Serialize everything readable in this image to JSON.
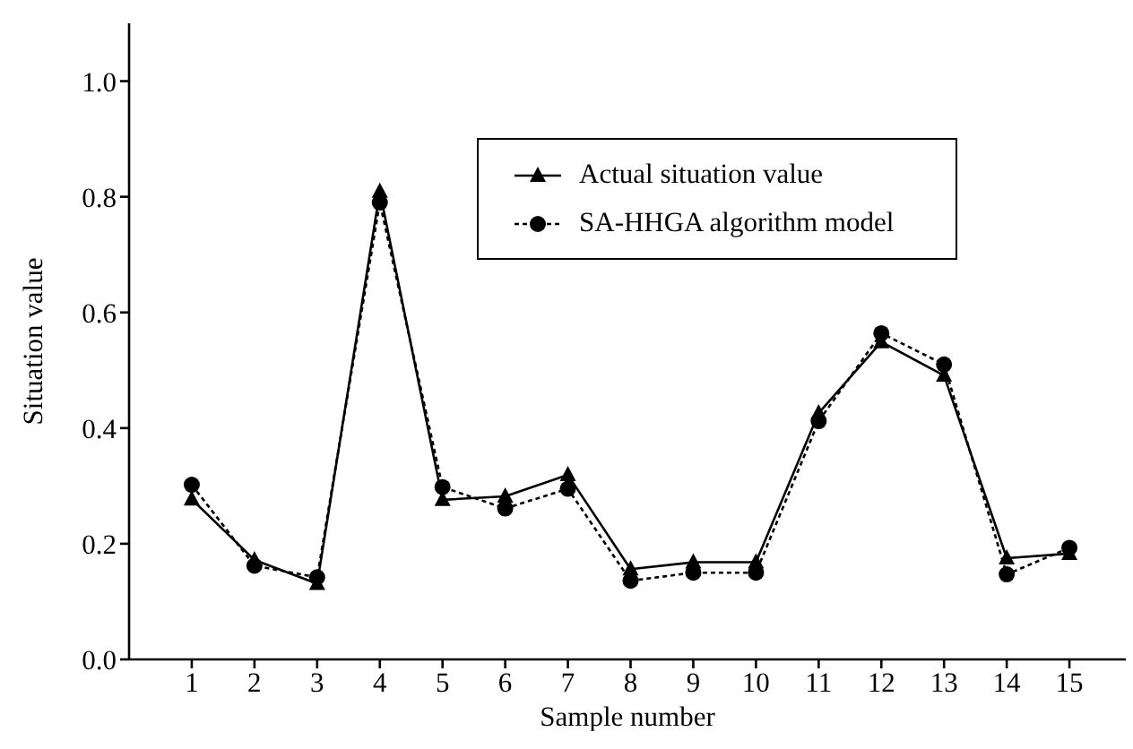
{
  "chart_data": {
    "type": "line",
    "xlabel": "Sample number",
    "ylabel": "Situation value",
    "x": [
      1,
      2,
      3,
      4,
      5,
      6,
      7,
      8,
      9,
      10,
      11,
      12,
      13,
      14,
      15
    ],
    "xlim": [
      0,
      15.9
    ],
    "xticks": [
      1,
      2,
      3,
      4,
      5,
      6,
      7,
      8,
      9,
      10,
      11,
      12,
      13,
      14,
      15
    ],
    "ylim": [
      0,
      1.1
    ],
    "yticks": [
      {
        "value": 0,
        "label": "0.0"
      },
      {
        "value": 0.2,
        "label": "0.2"
      },
      {
        "value": 0.4,
        "label": "0.4"
      },
      {
        "value": 0.6,
        "label": "0.6"
      },
      {
        "value": 0.8,
        "label": "0.8"
      },
      {
        "value": 1,
        "label": "1.0"
      }
    ],
    "grid": false,
    "legend": "top right",
    "series": [
      {
        "name": "Actual situation value",
        "color": "#000000",
        "marker": "triangle",
        "line_style": "solid",
        "values": [
          0.277,
          0.172,
          0.131,
          0.809,
          0.276,
          0.282,
          0.319,
          0.156,
          0.168,
          0.168,
          0.426,
          0.549,
          0.491,
          0.175,
          0.183
        ]
      },
      {
        "name": "SA-HHGA algorithm model",
        "color": "#000000",
        "marker": "circle",
        "line_style": "dotted",
        "values": [
          0.302,
          0.162,
          0.142,
          0.79,
          0.298,
          0.261,
          0.295,
          0.136,
          0.15,
          0.15,
          0.412,
          0.564,
          0.51,
          0.147,
          0.193
        ]
      }
    ]
  }
}
